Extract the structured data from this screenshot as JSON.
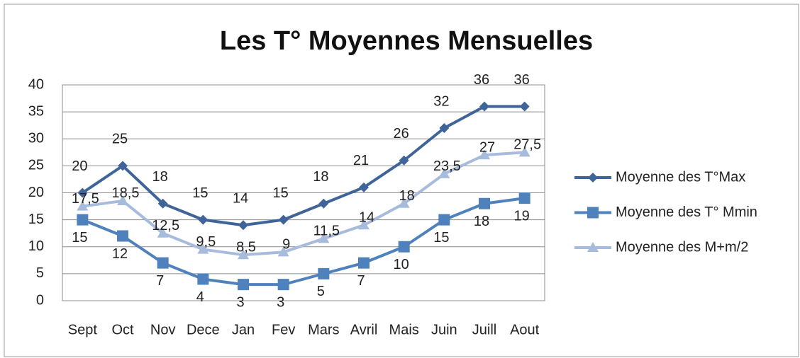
{
  "chart_data": {
    "type": "line",
    "title": "Les T° Moyennes Mensuelles",
    "categories": [
      "Sept",
      "Oct",
      "Nov",
      "Dece",
      "Jan",
      "Fev",
      "Mars",
      "Avril",
      "Mais",
      "Juin",
      "Juill",
      "Aout"
    ],
    "series": [
      {
        "name": "Moyenne des T°Max",
        "color": "#3f6499",
        "marker": "diamond",
        "values": [
          20,
          25,
          18,
          15,
          14,
          15,
          18,
          21,
          26,
          32,
          36,
          36
        ]
      },
      {
        "name": "Moyenne des T° Mmin",
        "color": "#4f81bd",
        "marker": "square",
        "values": [
          15,
          12,
          7,
          4,
          3,
          3,
          5,
          7,
          10,
          15,
          18,
          19
        ]
      },
      {
        "name": "Moyenne des M+m/2",
        "color": "#a7bbdc",
        "marker": "triangle",
        "values": [
          17.5,
          18.5,
          12.5,
          9.5,
          8.5,
          9,
          11.5,
          14,
          18,
          23.5,
          27,
          27.5
        ],
        "value_labels": [
          "17,5",
          "18,5",
          "12,5",
          "9,5",
          "8,5",
          "9",
          "11,5",
          "14",
          "18",
          "23,5",
          "27",
          "27,5"
        ]
      }
    ],
    "ylim": [
      0,
      40
    ],
    "yticks": [
      0,
      5,
      10,
      15,
      20,
      25,
      30,
      35,
      40
    ],
    "grid": true,
    "legend": "right"
  }
}
